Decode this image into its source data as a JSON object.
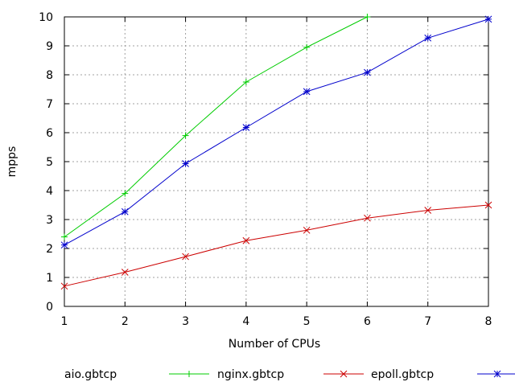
{
  "chart_data": {
    "type": "line",
    "title": "",
    "xlabel": "Number of CPUs",
    "ylabel": "mpps",
    "xlim": [
      1,
      8
    ],
    "ylim": [
      0,
      10
    ],
    "x_ticks": [
      1,
      2,
      3,
      4,
      5,
      6,
      7,
      8
    ],
    "y_ticks": [
      0,
      1,
      2,
      3,
      4,
      5,
      6,
      7,
      8,
      9,
      10
    ],
    "grid": true,
    "legend_position": "bottom",
    "series": [
      {
        "name": "aio.gbtcp",
        "color": "#ffffff",
        "marker": "none",
        "x": [],
        "y": []
      },
      {
        "name": "nginx.gbtcp",
        "color": "#00cc00",
        "marker": "plus",
        "x": [
          1,
          2,
          3,
          4,
          5,
          6
        ],
        "y": [
          2.4,
          3.9,
          5.9,
          7.75,
          8.95,
          10.0
        ]
      },
      {
        "name": "epoll.gbtcp",
        "color": "#cc0000",
        "marker": "cross",
        "x": [
          1,
          2,
          3,
          4,
          5,
          6,
          7,
          8
        ],
        "y": [
          0.7,
          1.18,
          1.72,
          2.27,
          2.63,
          3.05,
          3.32,
          3.5
        ]
      },
      {
        "name": "",
        "color": "#0000cc",
        "marker": "star",
        "x": [
          1,
          2,
          3,
          4,
          5,
          6,
          7,
          8
        ],
        "y": [
          2.12,
          3.27,
          4.93,
          6.18,
          7.42,
          8.08,
          9.27,
          9.92
        ]
      }
    ]
  }
}
